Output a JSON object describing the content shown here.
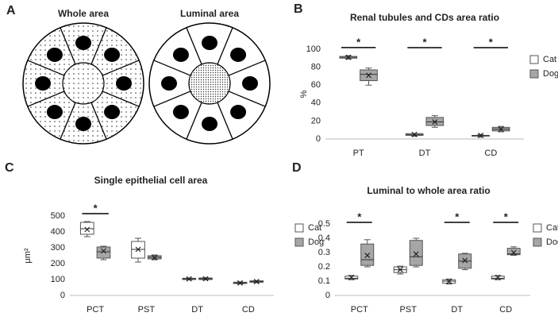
{
  "panel_labels": [
    "A",
    "B",
    "C",
    "D"
  ],
  "diagram": {
    "titles": [
      "Whole area",
      "Luminal area"
    ]
  },
  "chart_data": [
    {
      "type": "box",
      "title": "Renal tubules and CDs area ratio",
      "y_label": "%",
      "categories": [
        "PT",
        "DT",
        "CD"
      ],
      "significance": [
        "*",
        "*",
        "*"
      ],
      "ylim": [
        0,
        100
      ],
      "yticks": [
        0,
        20,
        40,
        60,
        80,
        100
      ],
      "series": [
        {
          "name": "Cat",
          "color": "#ffffff",
          "values": [
            {
              "min": 89,
              "q1": 90,
              "median": 91,
              "q3": 92,
              "max": 93,
              "mean": 91
            },
            {
              "min": 3,
              "q1": 4,
              "median": 5,
              "q3": 6,
              "max": 6,
              "mean": 5
            },
            {
              "min": 2,
              "q1": 3,
              "median": 4,
              "q3": 4,
              "max": 5,
              "mean": 4
            }
          ]
        },
        {
          "name": "Dog",
          "color": "#a6a6a6",
          "values": [
            {
              "min": 60,
              "q1": 65,
              "median": 72,
              "q3": 77,
              "max": 79,
              "mean": 71
            },
            {
              "min": 13,
              "q1": 15,
              "median": 19,
              "q3": 24,
              "max": 26,
              "mean": 19
            },
            {
              "min": 8,
              "q1": 9,
              "median": 11,
              "q3": 13,
              "max": 14,
              "mean": 11
            }
          ]
        }
      ]
    },
    {
      "type": "box",
      "title": "Single epithelial cell area",
      "y_label": "μm²",
      "categories": [
        "PCT",
        "PST",
        "DT",
        "CD"
      ],
      "significance": [
        "*",
        null,
        null,
        null
      ],
      "ylim": [
        0,
        500
      ],
      "yticks": [
        0,
        100,
        200,
        300,
        400,
        500
      ],
      "series": [
        {
          "name": "Cat",
          "color": "#ffffff",
          "values": [
            {
              "min": 370,
              "q1": 385,
              "median": 420,
              "q3": 460,
              "max": 465,
              "mean": 415
            },
            {
              "min": 210,
              "q1": 235,
              "median": 290,
              "q3": 340,
              "max": 360,
              "mean": 290
            },
            {
              "min": 98,
              "q1": 100,
              "median": 105,
              "q3": 108,
              "max": 110,
              "mean": 104
            },
            {
              "min": 72,
              "q1": 75,
              "median": 80,
              "q3": 83,
              "max": 85,
              "mean": 79
            }
          ]
        },
        {
          "name": "Dog",
          "color": "#a6a6a6",
          "values": [
            {
              "min": 225,
              "q1": 235,
              "median": 275,
              "q3": 305,
              "max": 310,
              "mean": 280
            },
            {
              "min": 225,
              "q1": 230,
              "median": 240,
              "q3": 250,
              "max": 255,
              "mean": 238
            },
            {
              "min": 98,
              "q1": 100,
              "median": 105,
              "q3": 110,
              "max": 112,
              "mean": 105
            },
            {
              "min": 80,
              "q1": 83,
              "median": 87,
              "q3": 92,
              "max": 94,
              "mean": 87
            }
          ]
        }
      ]
    },
    {
      "type": "box",
      "title": "Luminal to whole  area ratio",
      "categories": [
        "PCT",
        "PST",
        "DT",
        "CD"
      ],
      "significance": [
        "*",
        null,
        "*",
        "*"
      ],
      "ylim": [
        0,
        0.5
      ],
      "yticks": [
        0,
        0.1,
        0.2,
        0.3,
        0.4,
        0.5
      ],
      "series": [
        {
          "name": "Cat",
          "color": "#ffffff",
          "values": [
            {
              "min": 0.11,
              "q1": 0.115,
              "median": 0.12,
              "q3": 0.135,
              "max": 0.14,
              "mean": 0.125
            },
            {
              "min": 0.15,
              "q1": 0.16,
              "median": 0.18,
              "q3": 0.2,
              "max": 0.205,
              "mean": 0.18
            },
            {
              "min": 0.08,
              "q1": 0.085,
              "median": 0.1,
              "q3": 0.11,
              "max": 0.115,
              "mean": 0.098
            },
            {
              "min": 0.11,
              "q1": 0.115,
              "median": 0.12,
              "q3": 0.135,
              "max": 0.14,
              "mean": 0.125
            }
          ]
        },
        {
          "name": "Dog",
          "color": "#a6a6a6",
          "values": [
            {
              "min": 0.2,
              "q1": 0.21,
              "median": 0.25,
              "q3": 0.36,
              "max": 0.39,
              "mean": 0.28
            },
            {
              "min": 0.2,
              "q1": 0.21,
              "median": 0.27,
              "q3": 0.385,
              "max": 0.4,
              "mean": 0.29
            },
            {
              "min": 0.18,
              "q1": 0.19,
              "median": 0.24,
              "q3": 0.29,
              "max": 0.295,
              "mean": 0.245
            },
            {
              "min": 0.28,
              "q1": 0.285,
              "median": 0.29,
              "q3": 0.33,
              "max": 0.34,
              "mean": 0.3
            }
          ]
        }
      ]
    }
  ]
}
